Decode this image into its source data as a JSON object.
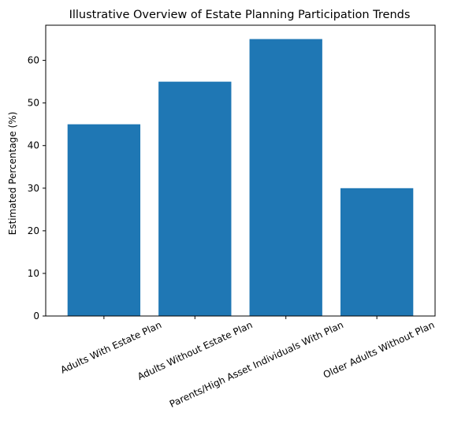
{
  "chart_data": {
    "type": "bar",
    "title": "Illustrative Overview of Estate Planning Participation Trends",
    "xlabel": "",
    "ylabel": "Estimated Percentage (%)",
    "categories": [
      "Adults With Estate Plan",
      "Adults Without Estate Plan",
      "Parents/High Asset Individuals With Plan",
      "Older Adults Without Plan"
    ],
    "values": [
      45,
      55,
      65,
      30
    ],
    "ylim": [
      0,
      68.25
    ],
    "yticks": [
      0,
      10,
      20,
      30,
      40,
      50,
      60
    ],
    "bar_color": "#1f77b4",
    "grid": false,
    "legend": "none"
  }
}
